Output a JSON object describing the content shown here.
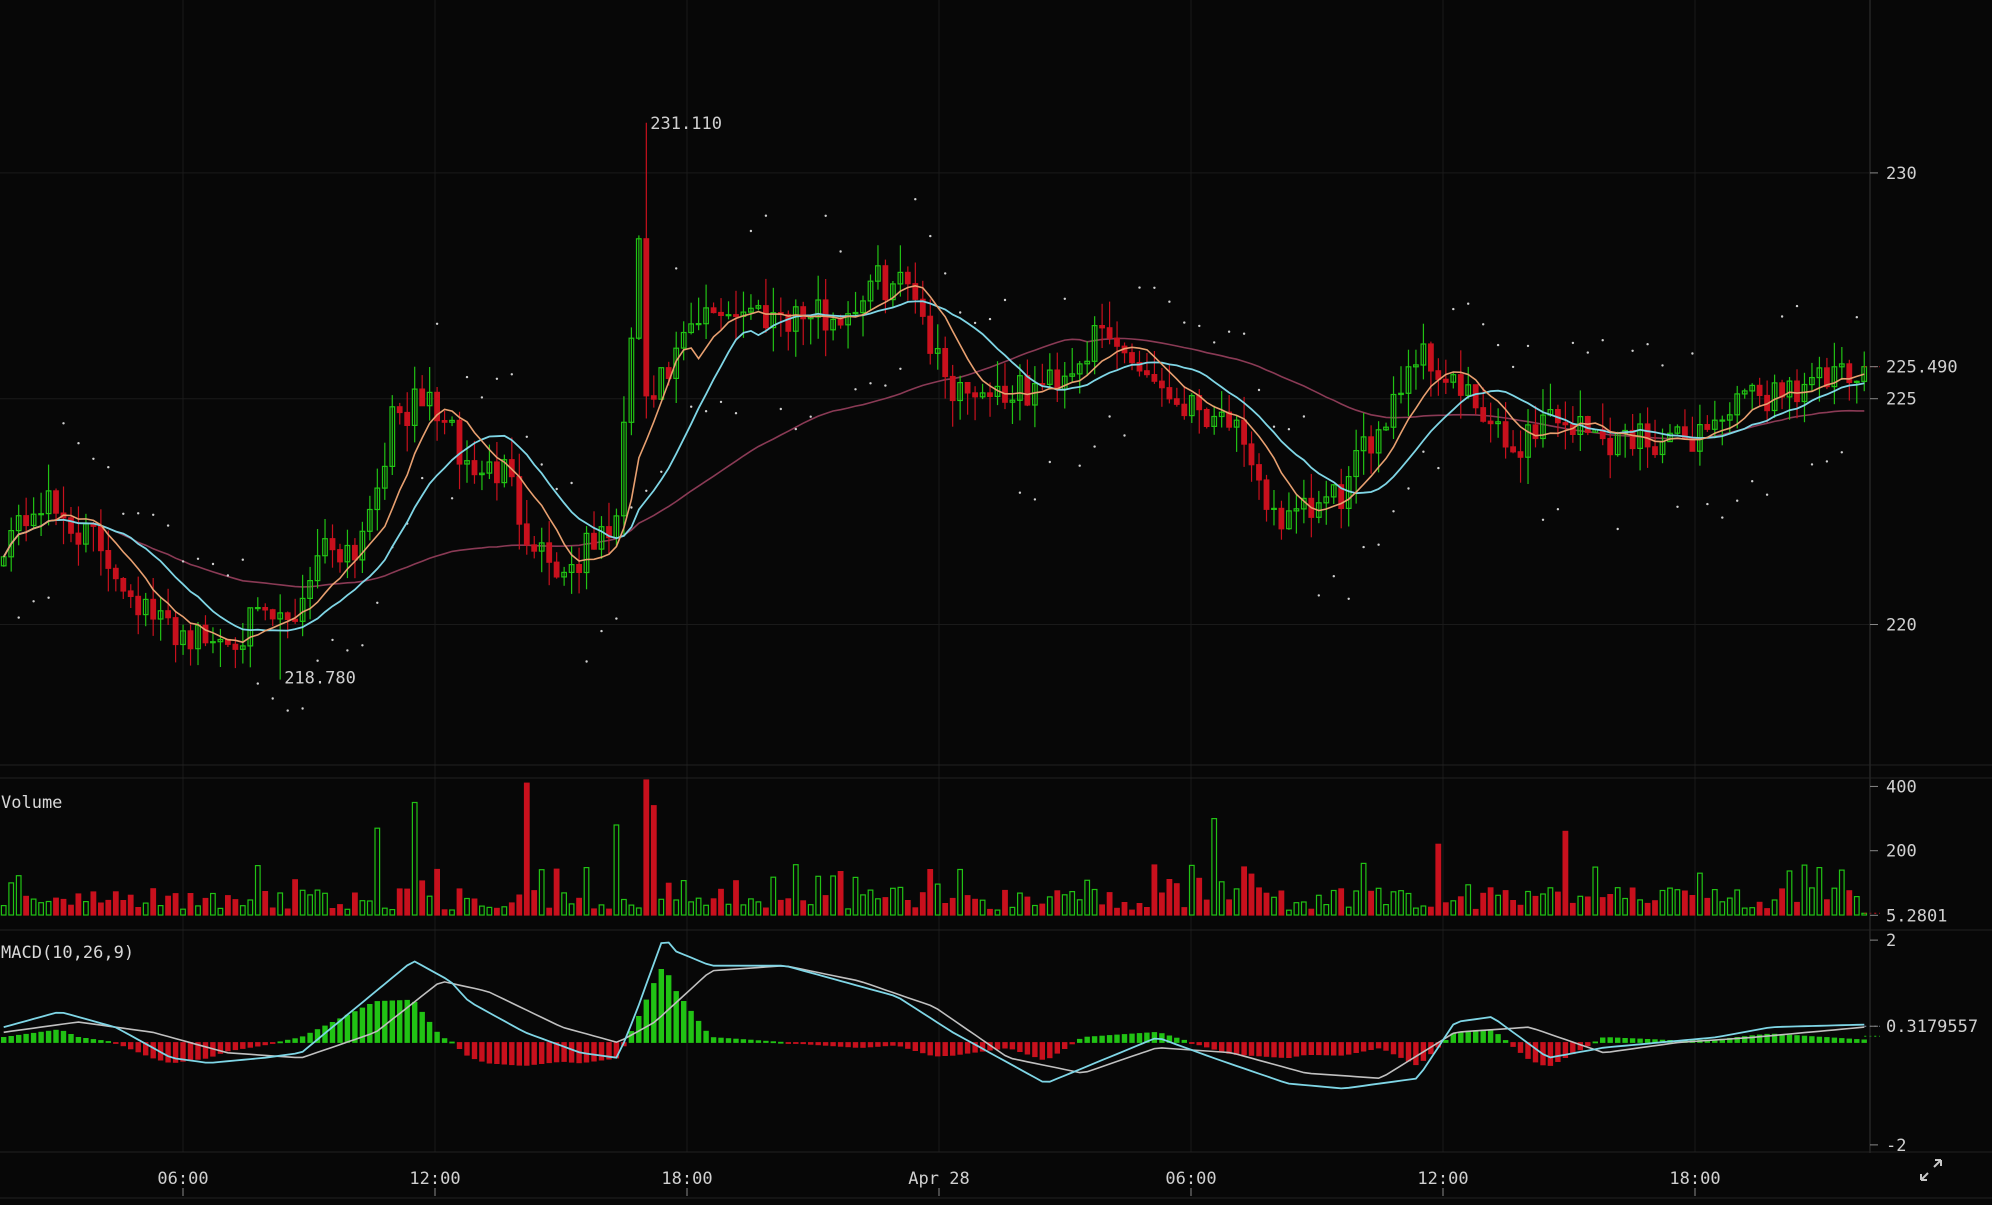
{
  "chart_data": {
    "type": "candlestick",
    "price_axis": {
      "ticks": [
        "220",
        "225",
        "230"
      ],
      "ylim": [
        217,
        232.5
      ]
    },
    "current_price_label": "225.490",
    "high_marker": {
      "label": "231.110",
      "value": 231.11
    },
    "low_marker": {
      "label": "218.780",
      "value": 218.78
    },
    "time_axis": {
      "labels": [
        "06:00",
        "12:00",
        "18:00",
        "Apr 28",
        "06:00",
        "12:00",
        "18:00"
      ]
    },
    "price_anchors": {
      "x_fraction": [
        0,
        0.02,
        0.05,
        0.08,
        0.11,
        0.14,
        0.155,
        0.17,
        0.19,
        0.21,
        0.23,
        0.25,
        0.27,
        0.28,
        0.3,
        0.33,
        0.345,
        0.34,
        0.345,
        0.37,
        0.385,
        0.45,
        0.47,
        0.49,
        0.5,
        0.51,
        0.55,
        0.57,
        0.59,
        0.61,
        0.63,
        0.66,
        0.67,
        0.69,
        0.72,
        0.74,
        0.76,
        0.78,
        0.81,
        0.83,
        0.86,
        0.88,
        0.9,
        0.93,
        0.96,
        0.98,
        1.0
      ],
      "price": [
        221.9,
        222.7,
        221.8,
        220.1,
        219.6,
        220.1,
        220.0,
        221.8,
        221.7,
        224.6,
        225.0,
        223.4,
        223.4,
        222.2,
        221.1,
        222.3,
        230.6,
        229.6,
        224.7,
        226.5,
        227.0,
        226.8,
        227.6,
        227.5,
        226.0,
        225.3,
        225.1,
        225.6,
        226.4,
        225.8,
        225.0,
        224.6,
        223.2,
        222.2,
        222.9,
        224.5,
        226.1,
        225.3,
        223.8,
        224.7,
        224.1,
        224.2,
        224.0,
        224.8,
        225.3,
        225.4,
        225.4
      ]
    },
    "volume": {
      "title": "Volume",
      "ticks": [
        "400",
        "200"
      ],
      "current_label": "5.2801",
      "ylim": [
        0,
        420
      ],
      "spikes": [
        {
          "x_fraction": 0.22,
          "value": 350
        },
        {
          "x_fraction": 0.28,
          "value": 410
        },
        {
          "x_fraction": 0.345,
          "value": 420
        },
        {
          "x_fraction": 0.35,
          "value": 340
        },
        {
          "x_fraction": 0.65,
          "value": 300
        },
        {
          "x_fraction": 0.84,
          "value": 260
        },
        {
          "x_fraction": 0.77,
          "value": 220
        },
        {
          "x_fraction": 0.2,
          "value": 270
        },
        {
          "x_fraction": 0.33,
          "value": 280
        }
      ]
    },
    "macd": {
      "title": "MACD(10,26,9)",
      "ticks": [
        "2",
        "-2"
      ],
      "current_label": "0.3179557",
      "ylim": [
        -2.1,
        2.1
      ],
      "macd_anchors": {
        "x_fraction": [
          0,
          0.03,
          0.06,
          0.09,
          0.11,
          0.14,
          0.16,
          0.19,
          0.22,
          0.24,
          0.25,
          0.28,
          0.31,
          0.33,
          0.34,
          0.355,
          0.36,
          0.38,
          0.42,
          0.45,
          0.48,
          0.51,
          0.54,
          0.56,
          0.6,
          0.62,
          0.65,
          0.69,
          0.72,
          0.76,
          0.78,
          0.8,
          0.83,
          0.86,
          0.89,
          0.92,
          0.95,
          1.0
        ],
        "value": [
          0.3,
          0.6,
          0.3,
          -0.3,
          -0.4,
          -0.3,
          -0.2,
          0.7,
          1.6,
          1.2,
          0.8,
          0.2,
          -0.2,
          -0.3,
          0.6,
          2.1,
          1.8,
          1.5,
          1.5,
          1.2,
          0.9,
          0.2,
          -0.4,
          -0.8,
          -0.2,
          0.1,
          -0.3,
          -0.8,
          -0.9,
          -0.7,
          0.4,
          0.5,
          -0.3,
          -0.1,
          0.0,
          0.1,
          0.3,
          0.35
        ]
      },
      "signal_anchors": {
        "x_fraction": [
          0,
          0.04,
          0.08,
          0.12,
          0.16,
          0.2,
          0.235,
          0.26,
          0.3,
          0.33,
          0.35,
          0.38,
          0.42,
          0.46,
          0.5,
          0.54,
          0.58,
          0.62,
          0.66,
          0.7,
          0.74,
          0.78,
          0.82,
          0.86,
          0.9,
          0.94,
          1.0
        ],
        "value": [
          0.2,
          0.4,
          0.2,
          -0.2,
          -0.3,
          0.2,
          1.2,
          1.0,
          0.3,
          0.0,
          0.4,
          1.4,
          1.5,
          1.2,
          0.7,
          -0.3,
          -0.6,
          -0.1,
          -0.2,
          -0.6,
          -0.7,
          0.2,
          0.3,
          -0.2,
          0.0,
          0.1,
          0.3
        ]
      }
    },
    "colors": {
      "up": "#21c214",
      "down": "#c8101d",
      "ma_fast": "#e8a070",
      "ma_mid": "#7fd6e6",
      "ma_slow": "#8a3a55",
      "sar_dots": "#d0d0d0",
      "grid": "#1a1a1a",
      "macd_line": "#7fd6e6",
      "signal_line": "#c0c0c0",
      "current_price_line": "#c8101d",
      "current_macd_line": "#8899aa"
    }
  }
}
